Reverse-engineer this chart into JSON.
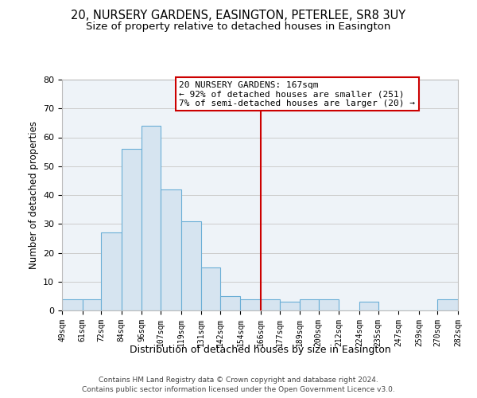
{
  "title": "20, NURSERY GARDENS, EASINGTON, PETERLEE, SR8 3UY",
  "subtitle": "Size of property relative to detached houses in Easington",
  "xlabel": "Distribution of detached houses by size in Easington",
  "ylabel": "Number of detached properties",
  "bar_edges": [
    49,
    61,
    72,
    84,
    96,
    107,
    119,
    131,
    142,
    154,
    166,
    177,
    189,
    200,
    212,
    224,
    235,
    247,
    259,
    270,
    282
  ],
  "bar_heights": [
    4,
    4,
    27,
    56,
    64,
    42,
    31,
    15,
    5,
    4,
    4,
    3,
    4,
    4,
    0,
    3,
    0,
    0,
    0,
    4
  ],
  "tick_labels": [
    "49sqm",
    "61sqm",
    "72sqm",
    "84sqm",
    "96sqm",
    "107sqm",
    "119sqm",
    "131sqm",
    "142sqm",
    "154sqm",
    "166sqm",
    "177sqm",
    "189sqm",
    "200sqm",
    "212sqm",
    "224sqm",
    "235sqm",
    "247sqm",
    "259sqm",
    "270sqm",
    "282sqm"
  ],
  "bar_color": "#d6e4f0",
  "bar_edge_color": "#6aaed6",
  "vline_x": 166,
  "vline_color": "#cc0000",
  "annotation_line1": "20 NURSERY GARDENS: 167sqm",
  "annotation_line2": "← 92% of detached houses are smaller (251)",
  "annotation_line3": "7% of semi-detached houses are larger (20) →",
  "ylim": [
    0,
    80
  ],
  "yticks": [
    0,
    10,
    20,
    30,
    40,
    50,
    60,
    70,
    80
  ],
  "grid_color": "#cccccc",
  "bg_color": "#eef3f8",
  "footer_line1": "Contains HM Land Registry data © Crown copyright and database right 2024.",
  "footer_line2": "Contains public sector information licensed under the Open Government Licence v3.0.",
  "title_fontsize": 10.5,
  "subtitle_fontsize": 9.5,
  "xlabel_fontsize": 9,
  "ylabel_fontsize": 8.5,
  "tick_fontsize": 7,
  "annot_fontsize": 8,
  "footer_fontsize": 6.5
}
